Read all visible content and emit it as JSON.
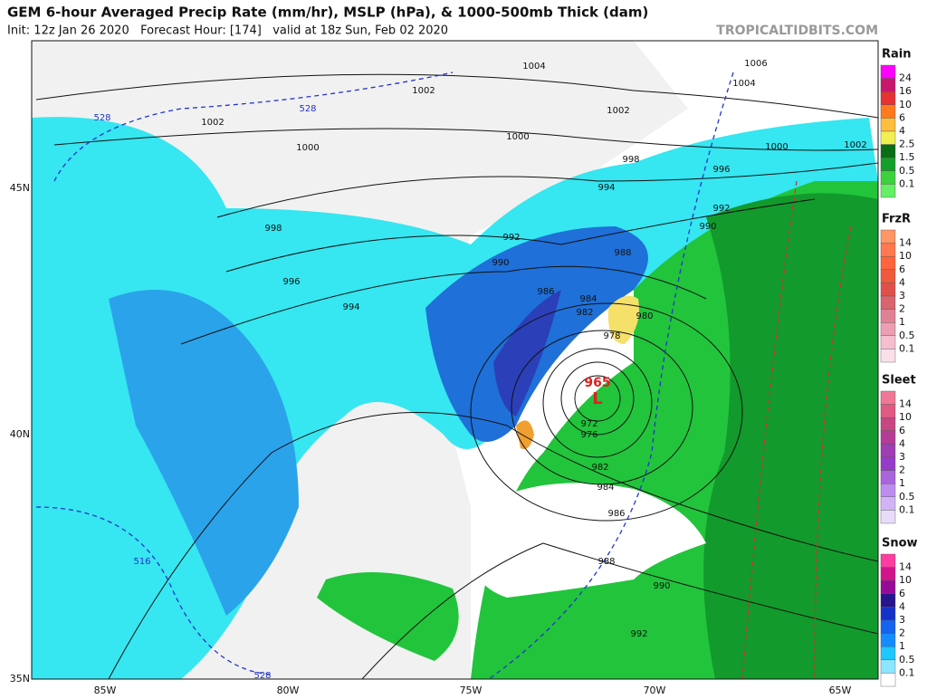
{
  "header": {
    "title": "GEM 6-hour Averaged Precip Rate (mm/hr), MSLP (hPa), & 1000-500mb Thick (dam)",
    "subtitle": "Init: 12z Jan 26 2020   Forecast Hour: [174]   valid at 18z Sun, Feb 02 2020",
    "site": "TROPICALTIDBITS.COM"
  },
  "low": {
    "pressure": "965",
    "symbol": "L"
  },
  "isobar_labels": [
    "1004",
    "1006",
    "1004",
    "1002",
    "1002",
    "1002",
    "1000",
    "1000",
    "1000",
    "1002",
    "998",
    "996",
    "994",
    "998",
    "992",
    "992",
    "990",
    "990",
    "988",
    "996",
    "986",
    "984",
    "994",
    "982",
    "980",
    "978",
    "972",
    "976",
    "982",
    "984",
    "986",
    "988",
    "990",
    "992"
  ],
  "thickness_labels": [
    "528",
    "528",
    "516",
    "528"
  ],
  "axes": {
    "lat_labels": [
      "45N",
      "40N",
      "35N"
    ],
    "lon_labels": [
      "85W",
      "80W",
      "75W",
      "70W",
      "65W"
    ]
  },
  "legends": [
    {
      "title": "Rain",
      "labels": [
        "24",
        "16",
        "10",
        "6",
        "4",
        "2.5",
        "1.5",
        "0.5",
        "0.1"
      ]
    },
    {
      "title": "FrzR",
      "labels": [
        "14",
        "10",
        "6",
        "4",
        "3",
        "2",
        "1",
        "0.5",
        "0.1"
      ]
    },
    {
      "title": "Sleet",
      "labels": [
        "14",
        "10",
        "6",
        "4",
        "3",
        "2",
        "1",
        "0.5",
        "0.1"
      ]
    },
    {
      "title": "Snow",
      "labels": [
        "14",
        "10",
        "6",
        "4",
        "3",
        "2",
        "1",
        "0.5",
        "0.1"
      ]
    }
  ]
}
